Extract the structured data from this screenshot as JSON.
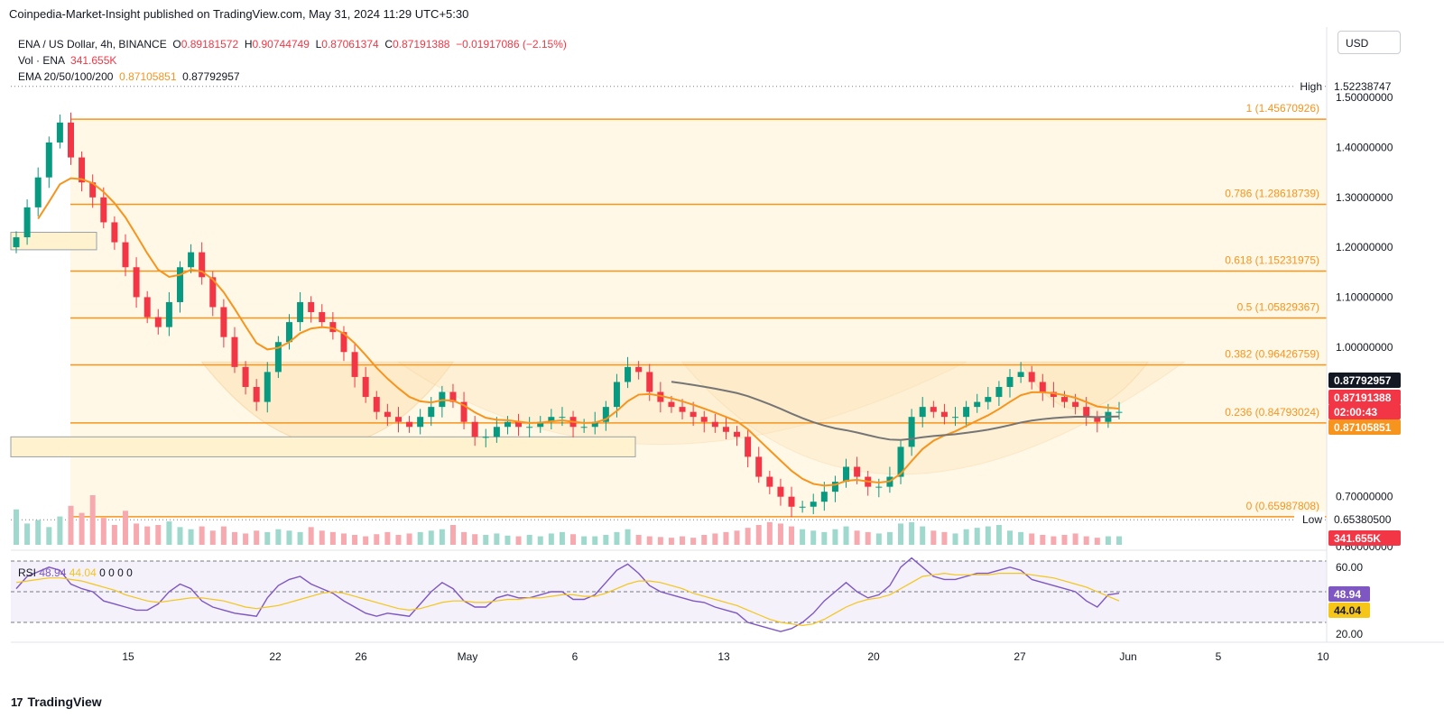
{
  "header": {
    "publisher_line": "Coinpedia-Market-Insight published on TradingView.com, May 31, 2024 11:29 UTC+5:30",
    "symbol": "ENA / US Dollar, 4h, BINANCE",
    "open_label": "O",
    "open": "0.89181572",
    "high_label": "H",
    "high": "0.90744749",
    "low_label": "L",
    "low": "0.87061374",
    "close_label": "C",
    "close": "0.87191388",
    "change": "−0.01917086 (−2.15%)",
    "vol_label": "Vol · ENA",
    "vol": "341.655K",
    "ema_label": "EMA 20/50/100/200",
    "ema1": "0.87105851",
    "ema2": "0.87792957"
  },
  "currency_button": "USD",
  "rsi_legend": {
    "label": "RSI",
    "rsi": "48.94",
    "ma": "44.04",
    "rest": "0  0  0  0"
  },
  "footer": {
    "logo": "17",
    "brand": "TradingView"
  },
  "colors": {
    "up": "#089981",
    "down": "#f23645",
    "fib": "#f7941d",
    "ema50": "#f7941d",
    "ema200": "#757575",
    "rsi": "#7e57c2",
    "rsi_ma": "#f5c518",
    "zone": "#fff5dc"
  },
  "chart_data": {
    "type": "candlestick",
    "x_axis_labels": [
      "15",
      "22",
      "26",
      "May",
      "6",
      "13",
      "20",
      "27",
      "Jun",
      "5",
      "10"
    ],
    "price_axis_ticks": [
      "1.50000000",
      "1.40000000",
      "1.30000000",
      "1.20000000",
      "1.10000000",
      "1.00000000",
      "0.70000000",
      "0.60000000"
    ],
    "price_ylim": [
      0.6,
      1.56
    ],
    "fibonacci": [
      {
        "level": "1",
        "value": "1.45670926"
      },
      {
        "level": "0.786",
        "value": "1.28618739"
      },
      {
        "level": "0.618",
        "value": "1.15231975"
      },
      {
        "level": "0.5",
        "value": "1.05829367"
      },
      {
        "level": "0.382",
        "value": "0.96426759"
      },
      {
        "level": "0.236",
        "value": "0.84793024"
      },
      {
        "level": "0",
        "value": "0.65987808"
      }
    ],
    "price_markers": [
      {
        "label": "High",
        "value": "1.52238747"
      },
      {
        "label": "Low",
        "value": "0.65380500"
      }
    ],
    "price_badges": [
      {
        "text": "0.87792957",
        "color": "#131722"
      },
      {
        "text": "0.87191388",
        "color": "#f23645"
      },
      {
        "text": "02:00:43",
        "color": "#f23645"
      },
      {
        "text": "0.87105851",
        "color": "#f7941d"
      },
      {
        "text": "341.655K",
        "color": "#f23645"
      }
    ],
    "close_series": [
      1.22,
      1.28,
      1.34,
      1.41,
      1.45,
      1.38,
      1.33,
      1.3,
      1.25,
      1.21,
      1.16,
      1.1,
      1.06,
      1.04,
      1.09,
      1.16,
      1.19,
      1.14,
      1.08,
      1.02,
      0.96,
      0.92,
      0.89,
      0.95,
      1.01,
      1.05,
      1.09,
      1.07,
      1.05,
      1.03,
      0.99,
      0.94,
      0.9,
      0.87,
      0.86,
      0.85,
      0.84,
      0.86,
      0.88,
      0.91,
      0.89,
      0.85,
      0.82,
      0.82,
      0.84,
      0.85,
      0.84,
      0.84,
      0.85,
      0.86,
      0.86,
      0.84,
      0.84,
      0.85,
      0.88,
      0.93,
      0.96,
      0.95,
      0.91,
      0.89,
      0.88,
      0.87,
      0.86,
      0.85,
      0.84,
      0.83,
      0.82,
      0.78,
      0.74,
      0.72,
      0.7,
      0.68,
      0.68,
      0.69,
      0.71,
      0.73,
      0.76,
      0.74,
      0.72,
      0.72,
      0.74,
      0.8,
      0.86,
      0.88,
      0.87,
      0.86,
      0.86,
      0.88,
      0.89,
      0.9,
      0.92,
      0.94,
      0.95,
      0.93,
      0.91,
      0.9,
      0.89,
      0.88,
      0.86,
      0.85,
      0.87,
      0.87
    ],
    "volume_series": [
      50,
      30,
      35,
      25,
      40,
      55,
      45,
      70,
      38,
      28,
      48,
      30,
      26,
      28,
      33,
      25,
      22,
      26,
      20,
      26,
      18,
      16,
      20,
      18,
      22,
      20,
      18,
      25,
      20,
      18,
      16,
      14,
      12,
      15,
      18,
      14,
      16,
      18,
      20,
      22,
      28,
      18,
      15,
      14,
      16,
      13,
      12,
      14,
      12,
      16,
      18,
      15,
      12,
      12,
      14,
      18,
      22,
      14,
      12,
      11,
      10,
      12,
      10,
      14,
      16,
      18,
      20,
      24,
      28,
      32,
      30,
      26,
      22,
      20,
      18,
      22,
      26,
      20,
      18,
      16,
      18,
      30,
      32,
      26,
      20,
      18,
      16,
      22,
      24,
      26,
      28,
      20,
      18,
      16,
      14,
      12,
      14,
      16,
      12,
      10,
      12,
      12
    ],
    "rsi": {
      "value": "48.94",
      "ma": "44.04",
      "ticks": [
        "60.00",
        "20.00"
      ],
      "bands": [
        30,
        70
      ]
    },
    "rsi_series": [
      52,
      60,
      63,
      66,
      64,
      55,
      52,
      50,
      44,
      42,
      40,
      38,
      38,
      42,
      50,
      55,
      52,
      44,
      40,
      38,
      36,
      35,
      34,
      46,
      54,
      58,
      60,
      55,
      52,
      49,
      44,
      40,
      36,
      34,
      36,
      35,
      34,
      42,
      50,
      56,
      52,
      44,
      40,
      40,
      46,
      48,
      46,
      46,
      48,
      50,
      50,
      45,
      45,
      48,
      56,
      64,
      68,
      62,
      54,
      50,
      48,
      46,
      44,
      43,
      40,
      38,
      36,
      30,
      28,
      26,
      24,
      26,
      30,
      36,
      44,
      50,
      56,
      50,
      46,
      48,
      54,
      66,
      72,
      66,
      60,
      58,
      58,
      60,
      62,
      62,
      64,
      66,
      64,
      58,
      56,
      54,
      52,
      50,
      44,
      40,
      48,
      49
    ],
    "rsi_ma_series": [
      56,
      57,
      58,
      59,
      59,
      58,
      57,
      55,
      53,
      51,
      48,
      46,
      44,
      43,
      44,
      45,
      46,
      46,
      45,
      44,
      42,
      40,
      39,
      40,
      41,
      43,
      45,
      47,
      49,
      50,
      49,
      47,
      45,
      43,
      41,
      39,
      38,
      39,
      41,
      43,
      44,
      44,
      43,
      43,
      44,
      45,
      45,
      46,
      46,
      47,
      48,
      48,
      47,
      47,
      49,
      52,
      55,
      57,
      57,
      56,
      54,
      52,
      49,
      47,
      45,
      43,
      41,
      38,
      35,
      32,
      30,
      29,
      28,
      29,
      32,
      36,
      40,
      43,
      45,
      46,
      48,
      52,
      56,
      60,
      61,
      62,
      61,
      61,
      61,
      61,
      62,
      62,
      62,
      61,
      60,
      59,
      57,
      55,
      53,
      50,
      47,
      44
    ]
  }
}
